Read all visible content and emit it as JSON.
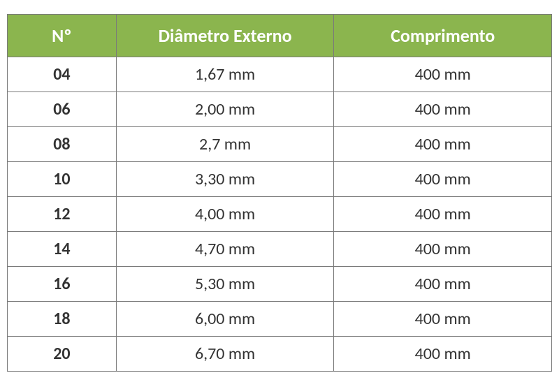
{
  "table": {
    "type": "table",
    "background_color": "#ffffff",
    "header_bg_color": "#8bb54e",
    "header_text_color": "#ffffff",
    "border_color": "#7a7a7a",
    "header_fontsize": 26,
    "cell_fontsize": 24,
    "columns": [
      {
        "label": "Nº",
        "width_pct": 20
      },
      {
        "label": "Diâmetro Externo",
        "width_pct": 40
      },
      {
        "label": "Comprimento",
        "width_pct": 40
      }
    ],
    "rows": [
      {
        "num": "04",
        "diametro": "1,67 mm",
        "comprimento": "400 mm"
      },
      {
        "num": "06",
        "diametro": "2,00 mm",
        "comprimento": "400 mm"
      },
      {
        "num": "08",
        "diametro": "2,7 mm",
        "comprimento": "400 mm"
      },
      {
        "num": "10",
        "diametro": "3,30 mm",
        "comprimento": "400 mm"
      },
      {
        "num": "12",
        "diametro": "4,00 mm",
        "comprimento": "400 mm"
      },
      {
        "num": "14",
        "diametro": "4,70 mm",
        "comprimento": "400 mm"
      },
      {
        "num": "16",
        "diametro": "5,30 mm",
        "comprimento": "400 mm"
      },
      {
        "num": "18",
        "diametro": "6,00 mm",
        "comprimento": "400 mm"
      },
      {
        "num": "20",
        "diametro": "6,70 mm",
        "comprimento": "400 mm"
      }
    ]
  }
}
